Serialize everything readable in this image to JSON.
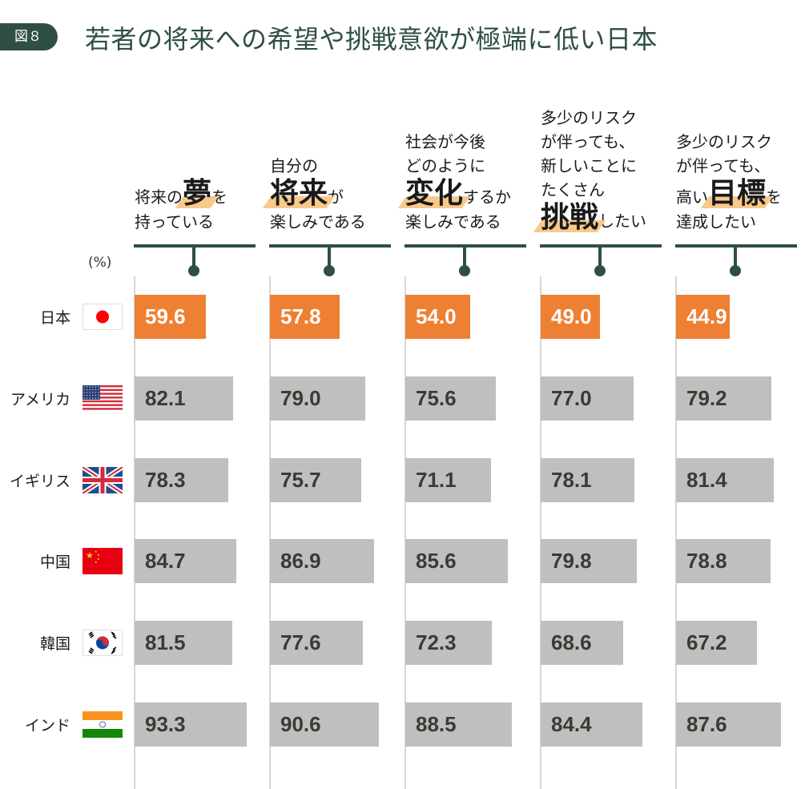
{
  "badge": "図８",
  "title": "若者の将来への希望や挑戦意欲が極端に低い日本",
  "unit": "(%)",
  "chart_data": {
    "type": "bar",
    "title": "若者の将来への希望や挑戦意欲が極端に低い日本",
    "unit": "(%)",
    "categories": [
      {
        "lines": [
          [
            {
              "t": "将来の"
            },
            {
              "t": "夢",
              "big": true
            },
            {
              "t": "を"
            }
          ],
          [
            {
              "t": "持っている"
            }
          ]
        ]
      },
      {
        "lines": [
          [
            {
              "t": "自分の"
            }
          ],
          [
            {
              "t": "将来",
              "big": true
            },
            {
              "t": "が"
            }
          ],
          [
            {
              "t": "楽しみである"
            }
          ]
        ]
      },
      {
        "lines": [
          [
            {
              "t": "社会が今後"
            }
          ],
          [
            {
              "t": "どのように"
            }
          ],
          [
            {
              "t": "変化",
              "big": true
            },
            {
              "t": "するか"
            }
          ],
          [
            {
              "t": "楽しみである"
            }
          ]
        ]
      },
      {
        "lines": [
          [
            {
              "t": "多少のリスク"
            }
          ],
          [
            {
              "t": "が伴っても、"
            }
          ],
          [
            {
              "t": "新しいことに"
            }
          ],
          [
            {
              "t": "たくさん"
            }
          ],
          [
            {
              "t": "挑戦",
              "big": true
            },
            {
              "t": "したい"
            }
          ]
        ]
      },
      {
        "lines": [
          [
            {
              "t": "多少のリスク"
            }
          ],
          [
            {
              "t": "が伴っても、"
            }
          ],
          [
            {
              "t": "高い"
            },
            {
              "t": "目標",
              "big": true
            },
            {
              "t": "を"
            }
          ],
          [
            {
              "t": "達成したい"
            }
          ]
        ]
      }
    ],
    "series": [
      {
        "name": "日本",
        "flag": "japan",
        "values": [
          59.6,
          57.8,
          54.0,
          49.0,
          44.9
        ]
      },
      {
        "name": "アメリカ",
        "flag": "usa",
        "values": [
          82.1,
          79.0,
          75.6,
          77.0,
          79.2
        ]
      },
      {
        "name": "イギリス",
        "flag": "uk",
        "values": [
          78.3,
          75.7,
          71.1,
          78.1,
          81.4
        ]
      },
      {
        "name": "中国",
        "flag": "china",
        "values": [
          84.7,
          86.9,
          85.6,
          79.8,
          78.8
        ]
      },
      {
        "name": "韓国",
        "flag": "korea",
        "values": [
          81.5,
          77.6,
          72.3,
          68.6,
          67.2
        ]
      },
      {
        "name": "インド",
        "flag": "india",
        "values": [
          93.3,
          90.6,
          88.5,
          84.4,
          87.6
        ]
      }
    ],
    "colors": {
      "highlight": "#ed8033",
      "others": "#bfbfbf",
      "accent": "#2f4f43",
      "marker": "#f9c98a"
    },
    "xlim": [
      0,
      100
    ]
  }
}
